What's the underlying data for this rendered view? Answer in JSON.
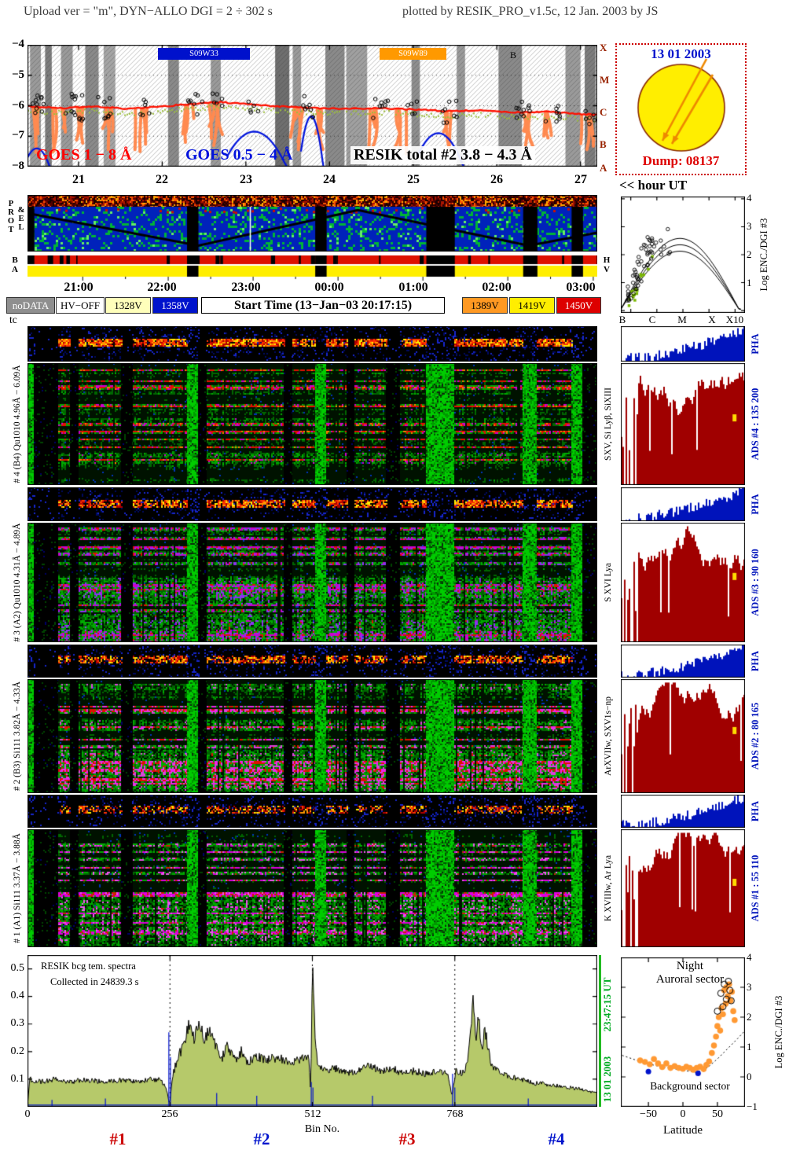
{
  "header": {
    "left": "Upload ver = \"m\", DYN−ALLO DGI =   2 ÷ 302 s",
    "right": "plotted by RESIK_PRO_v1.5c, 12 Jan. 2003 by JS"
  },
  "goes_panel": {
    "y_ticks": [
      "−4",
      "−5",
      "−6",
      "−7",
      "−8"
    ],
    "x_ticks": [
      "21",
      "22",
      "23",
      "24",
      "25",
      "26",
      "27"
    ],
    "class_letters": [
      "X",
      "M",
      "C",
      "B",
      "A"
    ],
    "goes_low_label": "GOES 1 − 8 Å",
    "goes_high_label": "GOES 0.5 − 4 Å",
    "resik_label": "RESIK total #2  3.8 − 4.3 Å",
    "b_marker": "B"
  },
  "sun_panel": {
    "date": "13 01 2003",
    "dump_label": "Dump: 08137"
  },
  "hour_ut_label": "<< hour UT",
  "side_labels": {
    "prot": "PROT",
    "el": "&EL",
    "ba": "BA",
    "hv": "HV",
    "tc": "tc"
  },
  "time_axis": {
    "ticks": [
      "21:00",
      "22:00",
      "23:00",
      "00:00",
      "01:00",
      "02:00",
      "03:00"
    ]
  },
  "legend": {
    "nodata": "noDATA",
    "hv_off": "HV−OFF",
    "v1328": "1328V",
    "v1358": "1358V",
    "start_time": "Start Time (13−Jan−03 20:17:15)",
    "v1389": "1389V",
    "v1419": "1419V",
    "v1450": "1450V"
  },
  "channels": [
    {
      "left_label": "# 4 (B4) Qu1010 4.96Å − 6.09Å",
      "line_label": "SXV, Si Lyβ, SiXIII",
      "pha_label": "PHA",
      "ads_label": "ADS #4 :  135 200"
    },
    {
      "left_label": "# 3 (A2) Qu1010 4.31Å − 4.89Å",
      "line_label": "S XVI Lya",
      "pha_label": "PHA",
      "ads_label": "ADS #3 :  90 160"
    },
    {
      "left_label": "# 2 (B3) Si111 3.82Å − 4.33Å",
      "line_label": "ArXVIIw, SXV1s−np",
      "pha_label": "PHA",
      "ads_label": "ADS #2 :  80 165"
    },
    {
      "left_label": "# 1 (A1) Si111 3.37Å − 3.88Å",
      "line_label": "K XVIIIw, Ar Lya",
      "pha_label": "PHA",
      "ads_label": "ADS #1 :  55 110"
    }
  ],
  "enc_panel": {
    "y_ticks": [
      "4",
      "3",
      "2",
      "1"
    ],
    "x_ticks": [
      "B",
      "C",
      "M",
      "X",
      "X10"
    ],
    "axis_label": "Log ENC./DGI #3"
  },
  "bcg_panel": {
    "title_line1": "RESIK bcg tem. spectra",
    "title_line2": "Collected in 24839.3 s",
    "y_ticks": [
      "0.5",
      "0.4",
      "0.3",
      "0.2",
      "0.1"
    ],
    "x_tick_zero": "0",
    "x_ticks": [
      "256",
      "512",
      "768"
    ],
    "x_label": "Bin No.",
    "quadrants": [
      {
        "text": "#1",
        "color": "#cc0000"
      },
      {
        "text": "#2",
        "color": "#0013cc"
      },
      {
        "text": "#3",
        "color": "#cc0000"
      },
      {
        "text": "#4",
        "color": "#0013cc"
      }
    ]
  },
  "lat_panel": {
    "title_line1": "Night",
    "title_line2": "Auroral sector",
    "background_label": "Background sector",
    "x_ticks": [
      "−50",
      "0",
      "50"
    ],
    "x_label": "Latitude",
    "y_ticks": [
      "4",
      "3",
      "2",
      "1",
      "0",
      "−1"
    ],
    "axis_label": "Log ENC./DGI #3",
    "timestamp": "23:47:15 UT",
    "date": "13 01 2003"
  },
  "colors": {
    "goes_red": "#ff1100",
    "goes_blue": "#0014dd",
    "resik_orange": "#ff8a50",
    "nodata_gray": "#8f8f8f",
    "hv_1328": "#ffffbb",
    "hv_1358": "#0013cc",
    "hv_1389": "#ff9922",
    "hv_1419": "#ffee00",
    "hv_1450": "#dd0000",
    "ads_darkred": "#a00000",
    "pha_blue": "#0013bb",
    "gap_green": "#00cc00",
    "bcg_fill": "#b6c96a",
    "auroral_orange": "#ff9933",
    "sun_yellow": "#ffee00"
  },
  "chart_data": {
    "goes": {
      "type": "line",
      "t0": 20.39,
      "t1": 27.2,
      "ytop": -4,
      "ybot": -8,
      "red": [
        [
          20.39,
          -6.02
        ],
        [
          20.8,
          -6.08
        ],
        [
          21.2,
          -6.02
        ],
        [
          21.6,
          -6.1
        ],
        [
          22.0,
          -6.02
        ],
        [
          22.4,
          -5.93
        ],
        [
          22.7,
          -5.88
        ],
        [
          23.0,
          -5.95
        ],
        [
          23.4,
          -6.02
        ],
        [
          23.8,
          -6.08
        ],
        [
          24.2,
          -6.1
        ],
        [
          24.6,
          -6.08
        ],
        [
          25.0,
          -6.12
        ],
        [
          25.4,
          -6.18
        ],
        [
          25.8,
          -6.15
        ],
        [
          26.2,
          -6.22
        ],
        [
          26.6,
          -6.2
        ],
        [
          27.0,
          -6.27
        ],
        [
          27.2,
          -6.3
        ]
      ],
      "blue_arcs": [
        [
          22.78,
          23.55,
          23.1,
          -6.85
        ],
        [
          23.66,
          23.95,
          23.78,
          -6.35
        ],
        [
          25.05,
          25.65,
          25.3,
          -6.9
        ],
        [
          20.39,
          20.7,
          20.5,
          -7.4
        ]
      ],
      "orange_dips": [
        20.5,
        20.75,
        21.05,
        21.35,
        21.75,
        22.35,
        22.6,
        23.65,
        23.9,
        24.55,
        24.85,
        25.45,
        26.35,
        26.6,
        27.05
      ],
      "circle_clusters": [
        [
          20.5,
          3,
          10,
          30
        ],
        [
          20.95,
          4,
          14,
          35
        ],
        [
          21.3,
          3,
          8,
          30
        ],
        [
          21.8,
          2,
          6,
          25
        ],
        [
          22.4,
          3,
          8,
          28
        ],
        [
          22.65,
          2,
          6,
          22
        ],
        [
          23.1,
          2,
          5,
          20
        ],
        [
          23.75,
          2,
          8,
          30
        ],
        [
          24.6,
          3,
          8,
          26
        ],
        [
          25.0,
          2,
          5,
          20
        ],
        [
          25.45,
          3,
          8,
          30
        ],
        [
          26.3,
          3,
          10,
          30
        ],
        [
          26.65,
          3,
          8,
          26
        ],
        [
          27.1,
          2,
          6,
          30
        ]
      ],
      "gray_bars": [
        [
          20.42,
          20.55,
          "#9a9a9a"
        ],
        [
          20.6,
          20.68,
          "#7d7d7d"
        ],
        [
          20.79,
          20.93,
          "#9a9a9a"
        ],
        [
          21.08,
          21.24,
          "#8a8a8a"
        ],
        [
          21.3,
          21.44,
          "#a5a5a5"
        ],
        [
          22.07,
          22.2,
          "#8a8a8a"
        ],
        [
          22.58,
          22.7,
          "#9a9a9a"
        ],
        [
          23.35,
          23.52,
          "#6f6f6f"
        ],
        [
          23.56,
          23.66,
          "#9a9a9a"
        ],
        [
          23.95,
          24.18,
          "#8a8a8a"
        ],
        [
          24.2,
          24.45,
          "#a0a0a0"
        ],
        [
          24.98,
          25.08,
          "#8f8f8f"
        ],
        [
          25.52,
          25.62,
          "#9a9a9a"
        ],
        [
          26.02,
          26.3,
          "#8a8a8a"
        ],
        [
          26.82,
          27.0,
          "#9a9a9a"
        ],
        [
          27.05,
          27.18,
          "#7d7d7d"
        ]
      ],
      "flare_bars": [
        {
          "t0": 21.95,
          "t1": 23.05,
          "label": "S09W33",
          "color": "#0011cc"
        },
        {
          "t0": 24.6,
          "t1": 25.4,
          "label": "S09W89",
          "color": "#ff9900"
        }
      ]
    },
    "spectrograms": {
      "type": "heatmap",
      "time_range": [
        "20:24",
        "03:15"
      ],
      "segments": [
        [
          0,
          0.012,
          "G"
        ],
        [
          0.012,
          0.055,
          "d"
        ],
        [
          0.055,
          0.075,
          "a"
        ],
        [
          0.075,
          0.09,
          "d"
        ],
        [
          0.09,
          0.165,
          "a"
        ],
        [
          0.165,
          0.185,
          "d"
        ],
        [
          0.185,
          0.28,
          "a"
        ],
        [
          0.28,
          0.3,
          "G"
        ],
        [
          0.3,
          0.315,
          "d"
        ],
        [
          0.315,
          0.45,
          "a"
        ],
        [
          0.45,
          0.465,
          "d"
        ],
        [
          0.465,
          0.505,
          "a"
        ],
        [
          0.505,
          0.525,
          "G"
        ],
        [
          0.525,
          0.56,
          "a"
        ],
        [
          0.56,
          0.575,
          "d"
        ],
        [
          0.575,
          0.63,
          "a"
        ],
        [
          0.63,
          0.655,
          "d"
        ],
        [
          0.655,
          0.7,
          "a"
        ],
        [
          0.7,
          0.75,
          "G"
        ],
        [
          0.75,
          0.87,
          "a"
        ],
        [
          0.87,
          0.895,
          "G"
        ],
        [
          0.895,
          0.955,
          "a"
        ],
        [
          0.955,
          0.975,
          "G"
        ],
        [
          0.975,
          1,
          "d"
        ]
      ]
    },
    "bcg": {
      "type": "line",
      "x_range": [
        0,
        1024
      ],
      "y_range": [
        0,
        0.55
      ],
      "points": [
        [
          0,
          0.0
        ],
        [
          4,
          0.1
        ],
        [
          24,
          0.09
        ],
        [
          48,
          0.1
        ],
        [
          72,
          0.088
        ],
        [
          96,
          0.098
        ],
        [
          120,
          0.095
        ],
        [
          144,
          0.09
        ],
        [
          168,
          0.096
        ],
        [
          192,
          0.092
        ],
        [
          216,
          0.098
        ],
        [
          240,
          0.1
        ],
        [
          250,
          0.06
        ],
        [
          255,
          0.01
        ],
        [
          262,
          0.12
        ],
        [
          270,
          0.18
        ],
        [
          280,
          0.22
        ],
        [
          290,
          0.3
        ],
        [
          300,
          0.24
        ],
        [
          308,
          0.31
        ],
        [
          318,
          0.25
        ],
        [
          328,
          0.29
        ],
        [
          338,
          0.22
        ],
        [
          350,
          0.18
        ],
        [
          360,
          0.22
        ],
        [
          372,
          0.17
        ],
        [
          384,
          0.2
        ],
        [
          396,
          0.16
        ],
        [
          410,
          0.18
        ],
        [
          430,
          0.17
        ],
        [
          450,
          0.18
        ],
        [
          470,
          0.16
        ],
        [
          490,
          0.17
        ],
        [
          505,
          0.18
        ],
        [
          509,
          0.06
        ],
        [
          512,
          0.52
        ],
        [
          516,
          0.3
        ],
        [
          521,
          0.15
        ],
        [
          535,
          0.13
        ],
        [
          555,
          0.14
        ],
        [
          575,
          0.12
        ],
        [
          595,
          0.13
        ],
        [
          615,
          0.15
        ],
        [
          635,
          0.13
        ],
        [
          655,
          0.14
        ],
        [
          675,
          0.12
        ],
        [
          695,
          0.13
        ],
        [
          715,
          0.12
        ],
        [
          735,
          0.13
        ],
        [
          755,
          0.12
        ],
        [
          763,
          0.04
        ],
        [
          770,
          0.13
        ],
        [
          780,
          0.12
        ],
        [
          790,
          0.15
        ],
        [
          797,
          0.28
        ],
        [
          801,
          0.42
        ],
        [
          806,
          0.25
        ],
        [
          811,
          0.35
        ],
        [
          816,
          0.2
        ],
        [
          822,
          0.28
        ],
        [
          832,
          0.16
        ],
        [
          845,
          0.13
        ],
        [
          865,
          0.11
        ],
        [
          890,
          0.1
        ],
        [
          915,
          0.085
        ],
        [
          940,
          0.08
        ],
        [
          965,
          0.072
        ],
        [
          990,
          0.065
        ],
        [
          1012,
          0.055
        ],
        [
          1024,
          0.05
        ]
      ],
      "blue_spikes": [
        [
          44,
          0.025
        ],
        [
          140,
          0.03
        ],
        [
          254,
          0.27
        ],
        [
          257,
          0.18
        ],
        [
          340,
          0.05
        ],
        [
          412,
          0.04
        ],
        [
          510,
          0.09
        ],
        [
          513,
          0.07
        ],
        [
          620,
          0.04
        ],
        [
          764,
          0.12
        ],
        [
          768,
          0.07
        ],
        [
          900,
          0.03
        ]
      ]
    },
    "enc_vs_class": {
      "type": "scatter",
      "description": "Log ENC./DGI #3 versus GOES class (B,C,M,X,X10) with three model curves and measured points clustered at low class"
    },
    "latitude": {
      "type": "scatter",
      "x_range": [
        -90,
        90
      ],
      "y_range": [
        -1,
        4
      ],
      "orange": [
        [
          -62,
          0.55
        ],
        [
          -55,
          0.5
        ],
        [
          -48,
          0.42
        ],
        [
          -42,
          0.6
        ],
        [
          -36,
          0.45
        ],
        [
          -30,
          0.33
        ],
        [
          -24,
          0.45
        ],
        [
          -18,
          0.3
        ],
        [
          -12,
          0.36
        ],
        [
          -6,
          0.3
        ],
        [
          0,
          0.27
        ],
        [
          5,
          0.34
        ],
        [
          10,
          0.3
        ],
        [
          15,
          0.24
        ],
        [
          20,
          0.3
        ],
        [
          25,
          0.34
        ],
        [
          30,
          0.26
        ],
        [
          34,
          0.4
        ],
        [
          38,
          0.52
        ],
        [
          42,
          0.8
        ],
        [
          45,
          1.05
        ],
        [
          48,
          1.35
        ],
        [
          50,
          1.7
        ],
        [
          52,
          2.0
        ],
        [
          54,
          1.55
        ],
        [
          56,
          2.3
        ],
        [
          58,
          2.1
        ],
        [
          60,
          2.9
        ],
        [
          62,
          2.45
        ],
        [
          63,
          3.0
        ],
        [
          65,
          2.7
        ],
        [
          67,
          3.1
        ],
        [
          69,
          2.55
        ],
        [
          71,
          2.85
        ],
        [
          73,
          2.2
        ],
        [
          75,
          1.9
        ]
      ],
      "blue": [
        [
          -50,
          0.18
        ],
        [
          22,
          0.12
        ]
      ],
      "open": [
        [
          50,
          2.2
        ],
        [
          55,
          2.8
        ],
        [
          58,
          2.35
        ],
        [
          60,
          3.1
        ],
        [
          63,
          2.6
        ],
        [
          66,
          3.2
        ],
        [
          68,
          2.9
        ],
        [
          70,
          2.55
        ]
      ],
      "dotted": [
        [
          -88,
          0.72
        ],
        [
          -60,
          0.5
        ],
        [
          -40,
          0.38
        ],
        [
          -20,
          0.3
        ],
        [
          0,
          0.22
        ],
        [
          20,
          0.15
        ],
        [
          35,
          0.3
        ],
        [
          50,
          0.6
        ],
        [
          65,
          0.95
        ],
        [
          80,
          1.3
        ],
        [
          88,
          1.5
        ]
      ]
    }
  }
}
